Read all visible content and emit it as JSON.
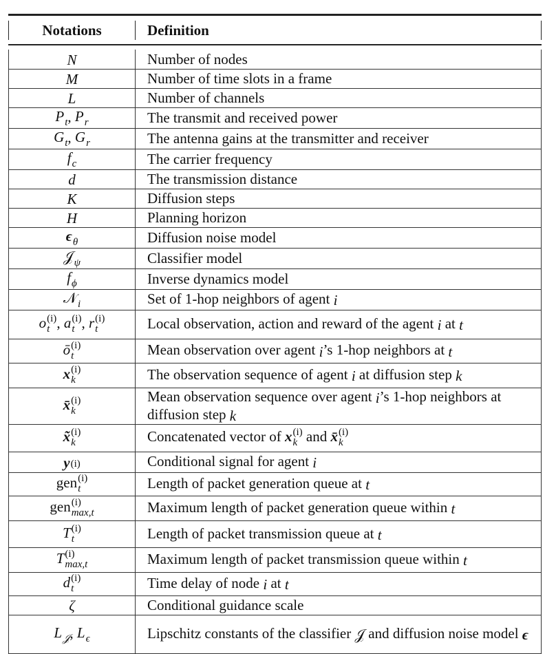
{
  "header": {
    "notations": "Notations",
    "definition": "Definition"
  },
  "rows": [
    {
      "n": [
        {
          "v": "N",
          "s": "m"
        }
      ],
      "d": [
        "Number of nodes"
      ]
    },
    {
      "n": [
        {
          "v": "M",
          "s": "m"
        }
      ],
      "d": [
        "Number of time slots in a frame"
      ]
    },
    {
      "n": [
        {
          "v": "L",
          "s": "m"
        }
      ],
      "d": [
        "Number of channels"
      ]
    },
    {
      "n": [
        {
          "v": "P",
          "s": "m",
          "sub": "t"
        },
        ", ",
        {
          "v": "P",
          "s": "m",
          "sub": "r"
        }
      ],
      "d": [
        "The transmit and received power"
      ]
    },
    {
      "n": [
        {
          "v": "G",
          "s": "m",
          "sub": "t"
        },
        ", ",
        {
          "v": "G",
          "s": "m",
          "sub": "r"
        }
      ],
      "d": [
        "The antenna gains at the transmitter and receiver"
      ]
    },
    {
      "n": [
        {
          "v": "f",
          "s": "m",
          "sub": "c"
        }
      ],
      "d": [
        "The carrier frequency"
      ]
    },
    {
      "n": [
        {
          "v": "d",
          "s": "m"
        }
      ],
      "d": [
        "The transmission distance"
      ]
    },
    {
      "n": [
        {
          "v": "K",
          "s": "m"
        }
      ],
      "d": [
        "Diffusion steps"
      ]
    },
    {
      "n": [
        {
          "v": "H",
          "s": "m"
        }
      ],
      "d": [
        "Planning horizon"
      ]
    },
    {
      "n": [
        {
          "v": "ϵ",
          "s": "bf",
          "sub": "θ"
        }
      ],
      "d": [
        "Diffusion noise model"
      ]
    },
    {
      "n": [
        {
          "v": "𝒥",
          "s": "rm",
          "sub": "ψ"
        }
      ],
      "d": [
        "Classifier model"
      ]
    },
    {
      "n": [
        {
          "v": "f",
          "s": "m",
          "sub": "ϕ"
        }
      ],
      "d": [
        "Inverse dynamics model"
      ]
    },
    {
      "n": [
        {
          "v": "𝒩",
          "s": "rm",
          "sub": "i"
        }
      ],
      "d": [
        "Set of 1-hop neighbors of agent ",
        {
          "v": "i",
          "s": "m"
        }
      ]
    },
    {
      "n": [
        {
          "v": "o",
          "s": "m",
          "sub": "t",
          "sup": "(i)"
        },
        ", ",
        {
          "v": "a",
          "s": "m",
          "sub": "t",
          "sup": "(i)"
        },
        ", ",
        {
          "v": "r",
          "s": "m",
          "sub": "t",
          "sup": "(i)"
        }
      ],
      "d": [
        "Local observation, action and reward of the agent ",
        {
          "v": "i",
          "s": "m"
        },
        " at ",
        {
          "v": "t",
          "s": "m"
        }
      ]
    },
    {
      "n": [
        {
          "v": "ō",
          "s": "m",
          "sub": "t",
          "sup": "(i)"
        }
      ],
      "d": [
        "Mean observation over agent ",
        {
          "v": "i",
          "s": "m"
        },
        "’s 1-hop neighbors at ",
        {
          "v": "t",
          "s": "m"
        }
      ]
    },
    {
      "n": [
        {
          "v": "x",
          "s": "bf",
          "sub": "k",
          "sup": "(i)"
        }
      ],
      "d": [
        "The observation sequence of agent ",
        {
          "v": "i",
          "s": "m"
        },
        " at diffusion step ",
        {
          "v": "k",
          "s": "m"
        }
      ]
    },
    {
      "n": [
        {
          "v": "x̄",
          "s": "bf",
          "sub": "k",
          "sup": "(i)"
        }
      ],
      "d": [
        "Mean observation sequence over agent ",
        {
          "v": "i",
          "s": "m"
        },
        "’s 1-hop neighbors at diffusion step ",
        {
          "v": "k",
          "s": "m"
        }
      ]
    },
    {
      "n": [
        {
          "v": "x̃",
          "s": "bf",
          "sub": "k",
          "sup": "(i)"
        }
      ],
      "d": [
        "Concatenated vector of ",
        {
          "v": "x",
          "s": "bf",
          "sub": "k",
          "sup": "(i)"
        },
        " and ",
        {
          "v": "x̄",
          "s": "bf",
          "sub": "k",
          "sup": "(i)"
        }
      ]
    },
    {
      "n": [
        {
          "v": "y",
          "s": "bf",
          "sup": "(i)"
        }
      ],
      "d": [
        "Conditional signal for agent ",
        {
          "v": "i",
          "s": "m"
        }
      ]
    },
    {
      "n": [
        {
          "v": "gen",
          "s": "rm",
          "sub": "t",
          "sup": "(i)"
        }
      ],
      "d": [
        "Length of packet generation queue at ",
        {
          "v": "t",
          "s": "m"
        }
      ]
    },
    {
      "n": [
        {
          "v": "gen",
          "s": "rm",
          "sub": "max,t",
          "sup": "(i)"
        }
      ],
      "d": [
        "Maximum length of packet generation queue within ",
        {
          "v": "t",
          "s": "m"
        }
      ]
    },
    {
      "n": [
        {
          "v": "T",
          "s": "m",
          "sub": "t",
          "sup": "(i)"
        }
      ],
      "d": [
        "Length of packet transmission queue at ",
        {
          "v": "t",
          "s": "m"
        }
      ]
    },
    {
      "n": [
        {
          "v": "T",
          "s": "m",
          "sub": "max,t",
          "sup": "(i)"
        }
      ],
      "d": [
        "Maximum length of packet transmission queue within ",
        {
          "v": "t",
          "s": "m"
        }
      ]
    },
    {
      "n": [
        {
          "v": "d",
          "s": "m",
          "sub": "t",
          "sup": "(i)"
        }
      ],
      "d": [
        "Time delay of node ",
        {
          "v": "i",
          "s": "m"
        },
        " at ",
        {
          "v": "t",
          "s": "m"
        }
      ]
    },
    {
      "n": [
        {
          "v": "ζ",
          "s": "m"
        }
      ],
      "d": [
        "Conditional guidance scale"
      ]
    },
    {
      "n": [
        {
          "v": "L",
          "s": "m",
          "sub": "𝒥"
        },
        ", ",
        {
          "v": "L",
          "s": "m",
          "sub": "ϵ"
        }
      ],
      "d": [
        "Lipschitz constants of the classifier ",
        {
          "v": "𝒥",
          "s": "rm"
        },
        " and diffusion noise model ",
        {
          "v": "ϵ",
          "s": "bf"
        }
      ]
    }
  ]
}
